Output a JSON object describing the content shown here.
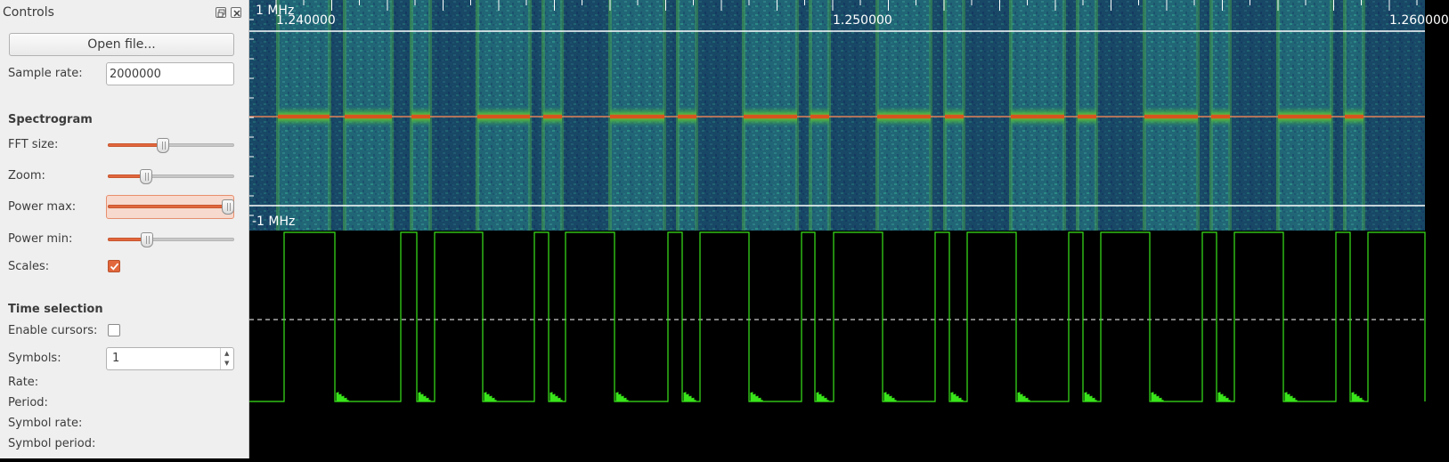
{
  "dock": {
    "title": "Controls",
    "open_file_label": "Open file...",
    "sample_rate": {
      "label": "Sample rate:",
      "value": "2000000"
    },
    "spectrogram": {
      "heading": "Spectrogram",
      "fft_size": {
        "label": "FFT size:",
        "level": 0.44
      },
      "zoom": {
        "label": "Zoom:",
        "level": 0.3
      },
      "power_max": {
        "label": "Power max:",
        "level": 0.95
      },
      "power_min": {
        "label": "Power min:",
        "level": 0.31
      },
      "scales": {
        "label": "Scales:",
        "checked": true
      }
    },
    "time_selection": {
      "heading": "Time selection",
      "enable_cursors": {
        "label": "Enable cursors:",
        "checked": false
      },
      "symbols": {
        "label": "Symbols:",
        "value": "1"
      },
      "rate_label": "Rate:",
      "period_label": "Period:",
      "symbol_rate_label": "Symbol rate:",
      "symbol_period_label": "Symbol period:"
    }
  },
  "spectrogram": {
    "freq_top_label": "1 MHz",
    "freq_bottom_label": "-1 MHz",
    "time_ticks": [
      "1.240000",
      "1.250000",
      "1.260000"
    ],
    "colors": {
      "background": "#1e5c74",
      "signal": "#d8541e",
      "band": "#47a64a"
    }
  },
  "waveform": {
    "trace_color": "#39e51a",
    "threshold_color": "#ffffff"
  }
}
